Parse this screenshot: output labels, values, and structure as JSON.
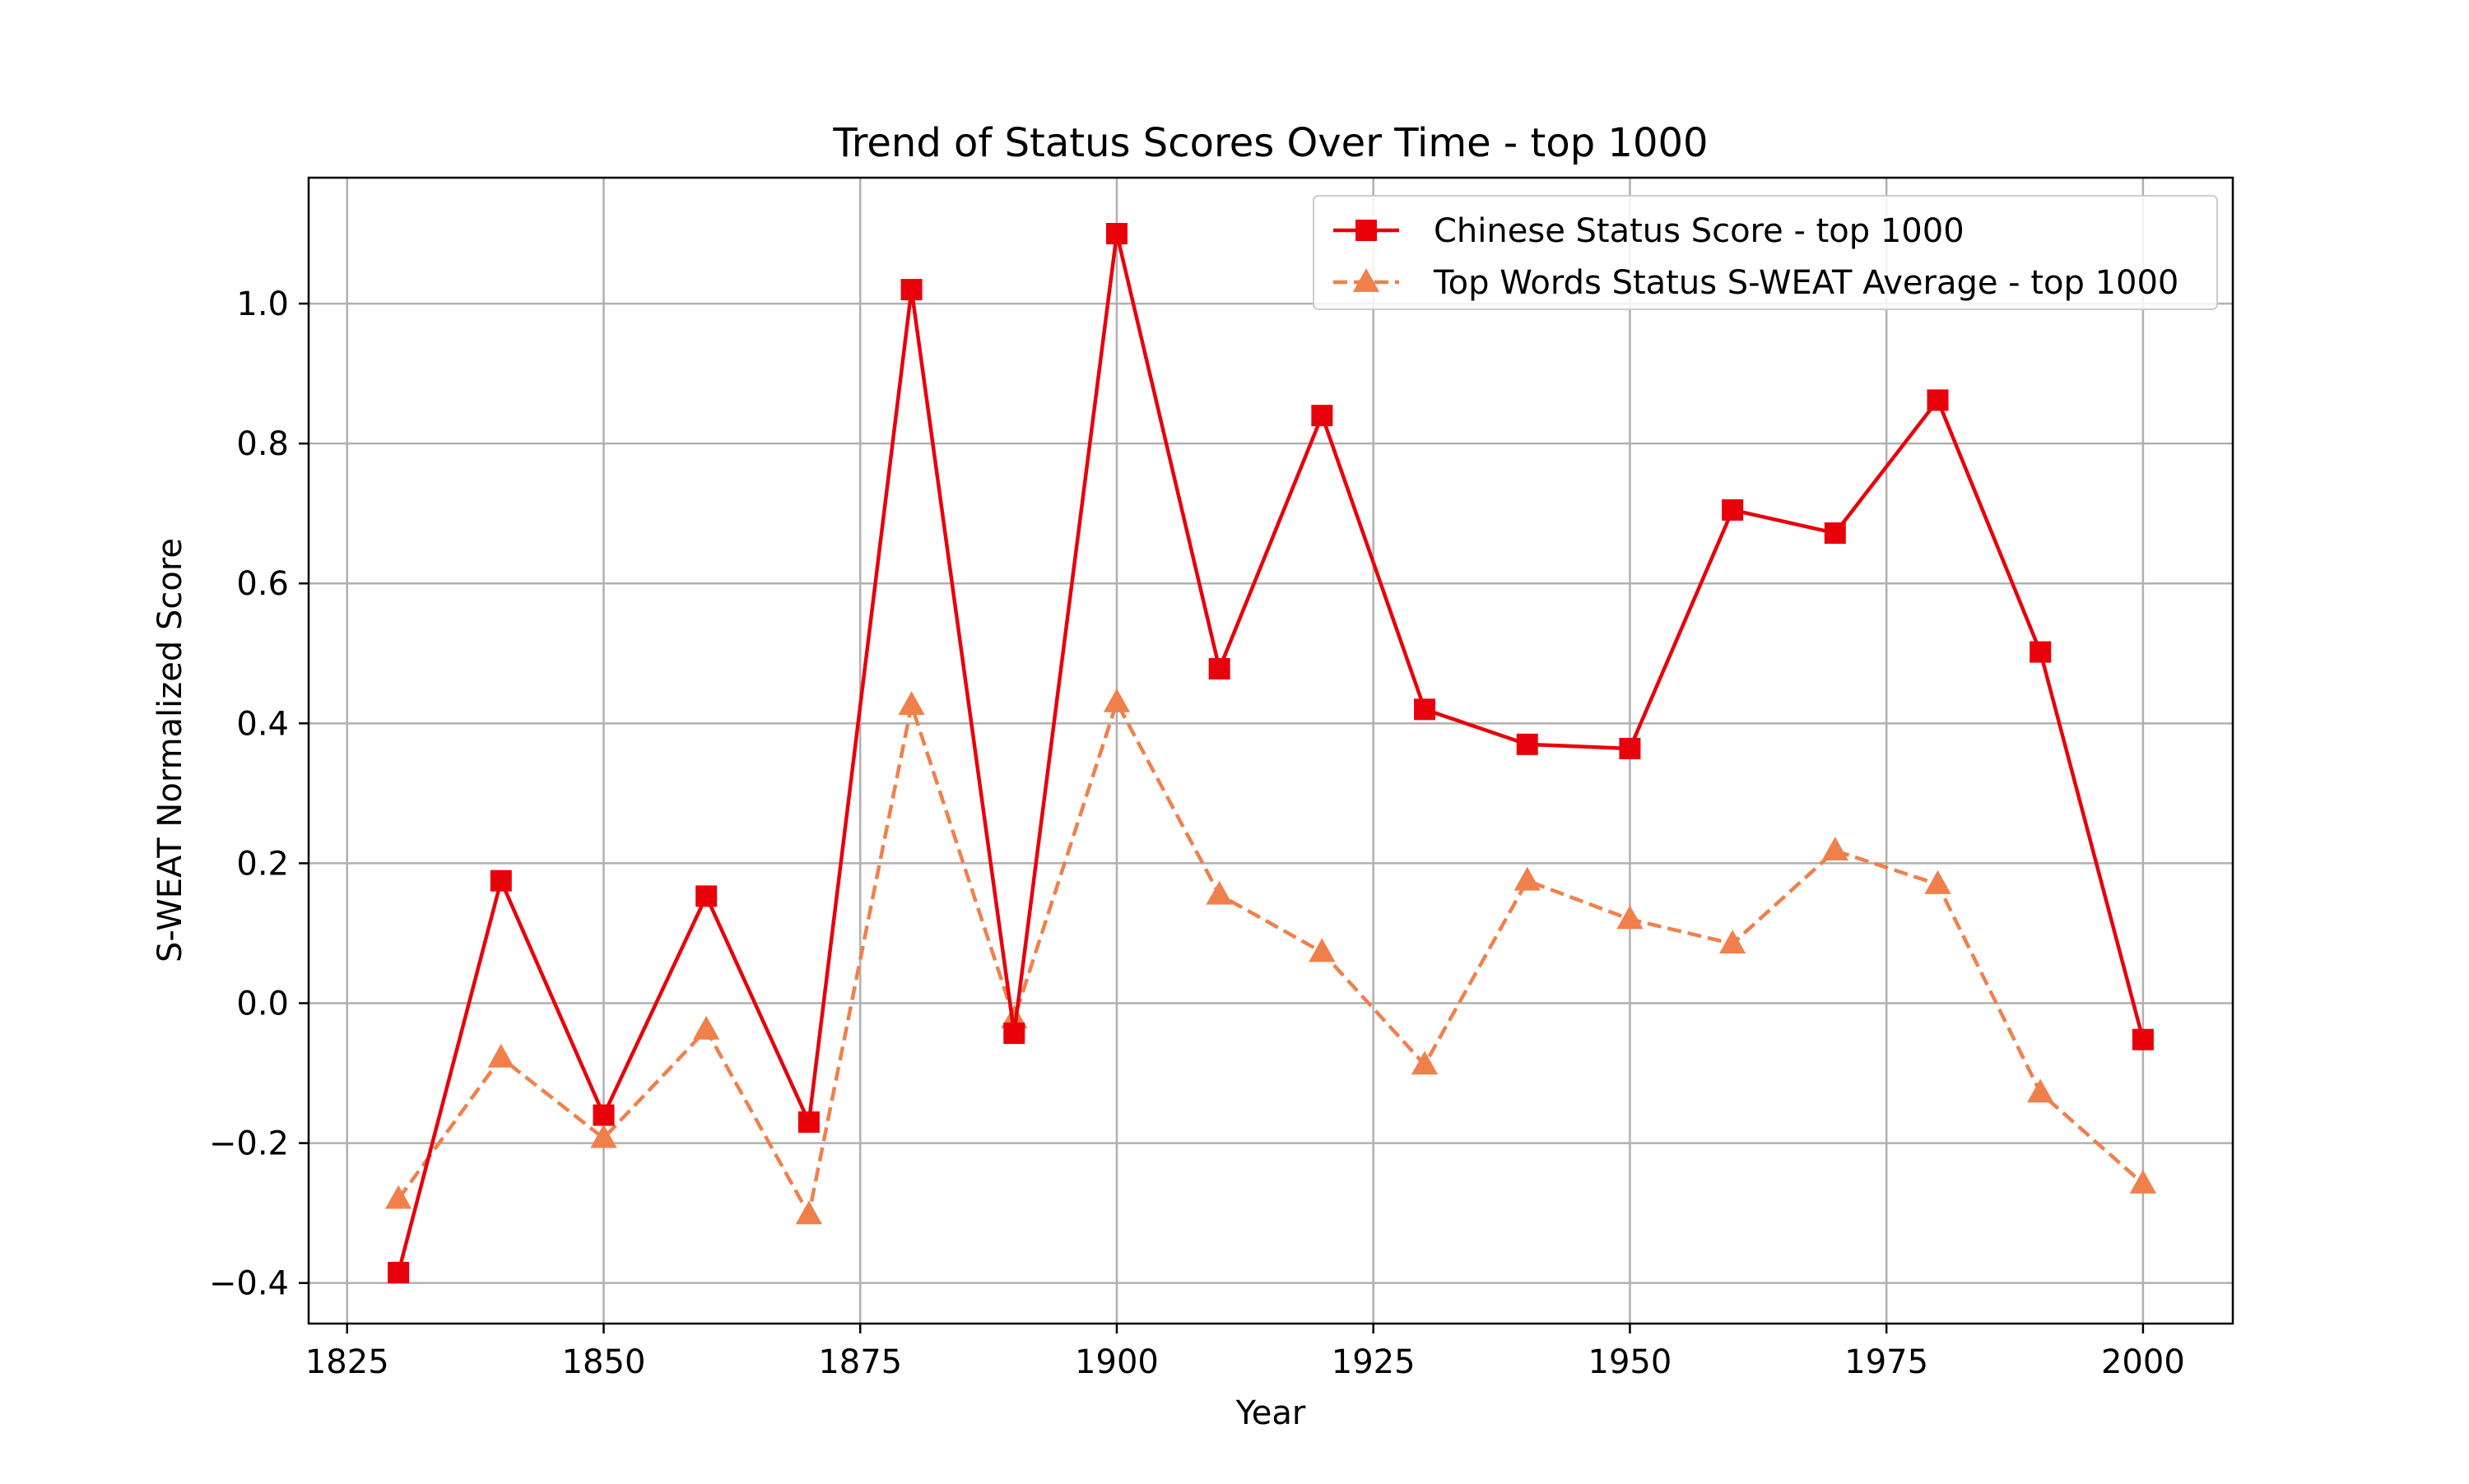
{
  "chart_data": {
    "type": "line",
    "title": "Trend of Status Scores Over Time - top 1000",
    "xlabel": "Year",
    "ylabel": "S-WEAT Normalized Score",
    "xlim": [
      1821.25,
      2008.75
    ],
    "ylim": [
      -0.458,
      1.18
    ],
    "xticks": [
      1825,
      1850,
      1875,
      1900,
      1925,
      1950,
      1975,
      2000
    ],
    "yticks": [
      -0.4,
      -0.2,
      0.0,
      0.2,
      0.4,
      0.6,
      0.8,
      1.0
    ],
    "ytick_labels": [
      "−0.4",
      "−0.2",
      "0.0",
      "0.2",
      "0.4",
      "0.6",
      "0.8",
      "1.0"
    ],
    "grid": true,
    "legend_position": "top-right",
    "x": [
      1830,
      1840,
      1850,
      1860,
      1870,
      1880,
      1890,
      1900,
      1910,
      1920,
      1930,
      1940,
      1950,
      1960,
      1970,
      1980,
      1990,
      2000
    ],
    "series": [
      {
        "name": "Chinese Status Score - top 1000",
        "color": "#e8000b",
        "line_style": "solid",
        "marker": "square",
        "values": [
          -0.385,
          0.175,
          -0.16,
          0.153,
          -0.17,
          1.02,
          -0.043,
          1.1,
          0.478,
          0.84,
          0.42,
          0.37,
          0.364,
          0.705,
          0.672,
          0.862,
          0.502,
          -0.052
        ]
      },
      {
        "name": "Top Words Status S-WEAT Average - top 1000",
        "color": "#f0804b",
        "line_style": "dashed",
        "marker": "triangle",
        "values": [
          -0.28,
          -0.078,
          -0.193,
          -0.038,
          -0.302,
          0.426,
          -0.022,
          0.43,
          0.155,
          0.073,
          -0.088,
          0.175,
          0.12,
          0.085,
          0.218,
          0.17,
          -0.128,
          -0.258
        ]
      }
    ]
  }
}
